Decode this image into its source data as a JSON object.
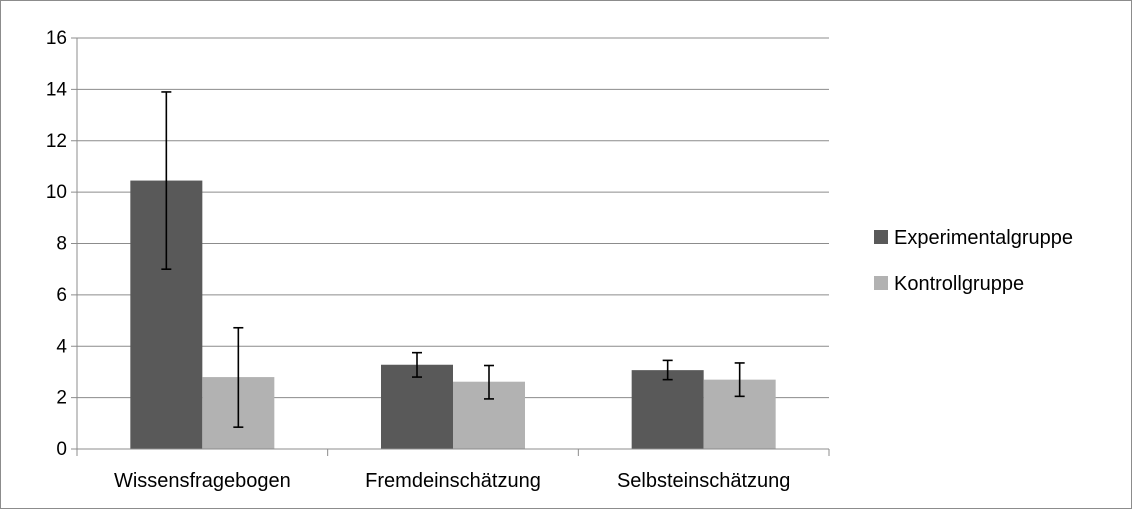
{
  "chart_data": {
    "type": "bar",
    "title": "",
    "xlabel": "",
    "ylabel": "",
    "ylim": [
      0,
      16
    ],
    "yticks": [
      0,
      2,
      4,
      6,
      8,
      10,
      12,
      14,
      16
    ],
    "grid": true,
    "legend_position": "right",
    "categories": [
      "Wissensfragebogen",
      "Fremdeinschätzung",
      "Selbsteinschätzung"
    ],
    "series": [
      {
        "name": "Experimentalgruppe",
        "color": "#595959",
        "values": [
          10.45,
          3.28,
          3.07
        ],
        "error_low": [
          7.0,
          2.8,
          2.7
        ],
        "error_high": [
          13.9,
          3.75,
          3.45
        ]
      },
      {
        "name": "Kontrollgruppe",
        "color": "#b2b2b2",
        "values": [
          2.8,
          2.62,
          2.7
        ],
        "error_low": [
          0.85,
          1.95,
          2.05
        ],
        "error_high": [
          4.72,
          3.25,
          3.35
        ]
      }
    ]
  }
}
